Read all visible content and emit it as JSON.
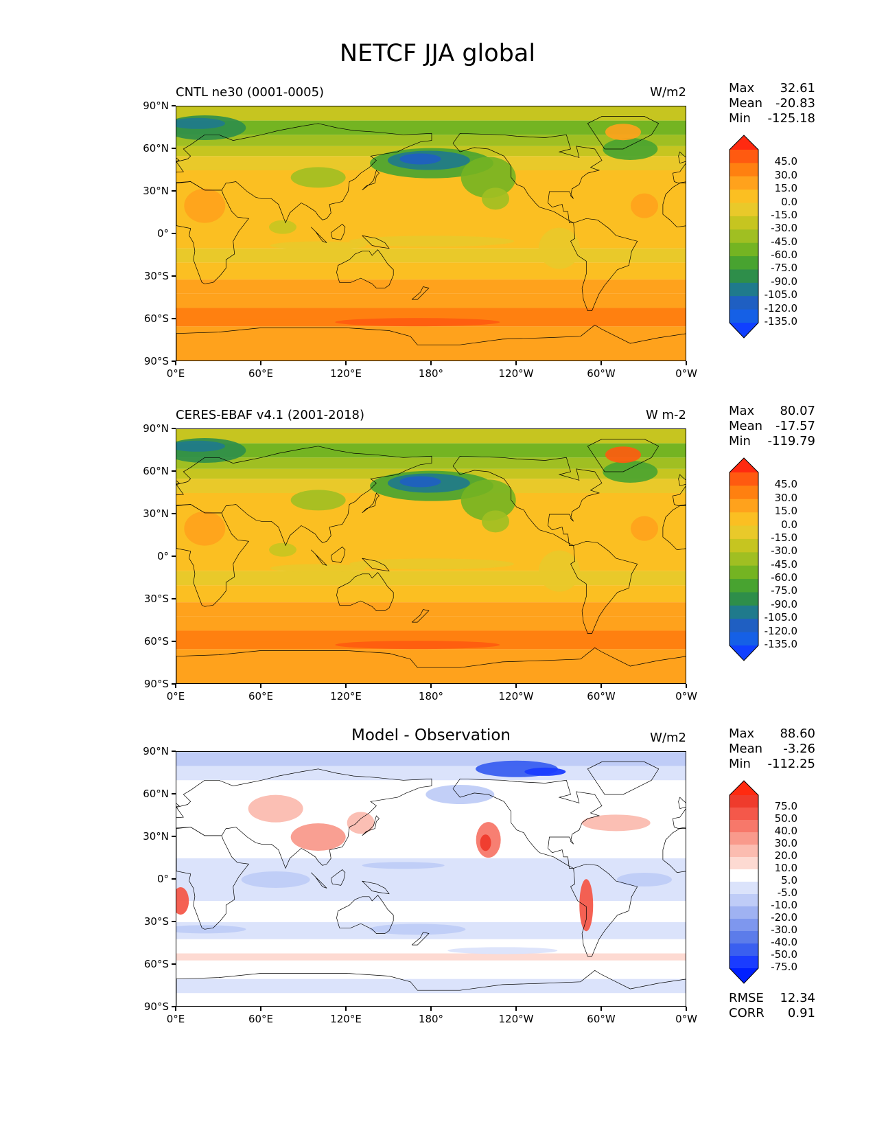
{
  "title": "NETCF JJA global",
  "chart_data": [
    {
      "type": "heatmap",
      "title": "CNTL ne30 (0001-0005)",
      "units": "W/m2",
      "xlabel": "",
      "ylabel": "",
      "xticks": [
        "0°E",
        "60°E",
        "120°E",
        "180°",
        "120°W",
        "60°W",
        "0°W"
      ],
      "yticks": [
        "90°N",
        "60°N",
        "30°N",
        "0°",
        "30°S",
        "60°S",
        "90°S"
      ],
      "stats": {
        "max_label": "Max",
        "max": "32.61",
        "mean_label": "Mean",
        "mean": "-20.83",
        "min_label": "Min",
        "min": "-125.18"
      },
      "colorbar": {
        "labels": [
          "45.0",
          "30.0",
          "15.0",
          "0.0",
          "-15.0",
          "-30.0",
          "-45.0",
          "-60.0",
          "-75.0",
          "-90.0",
          "-105.0",
          "-120.0",
          "-135.0"
        ],
        "colors": [
          "#ff2a10",
          "#ff5a10",
          "#ff8010",
          "#ffa21c",
          "#fbbf22",
          "#e9c92a",
          "#c6c520",
          "#a0bf22",
          "#74b422",
          "#48a330",
          "#2e8e4a",
          "#1f7a8c",
          "#1f5fc2",
          "#1560e6",
          "#1040ff"
        ]
      }
    },
    {
      "type": "heatmap",
      "title": "CERES-EBAF v4.1 (2001-2018)",
      "units": "W m-2",
      "xticks": [
        "0°E",
        "60°E",
        "120°E",
        "180°",
        "120°W",
        "60°W",
        "0°W"
      ],
      "yticks": [
        "90°N",
        "60°N",
        "30°N",
        "0°",
        "30°S",
        "60°S",
        "90°S"
      ],
      "stats": {
        "max_label": "Max",
        "max": "80.07",
        "mean_label": "Mean",
        "mean": "-17.57",
        "min_label": "Min",
        "min": "-119.79"
      },
      "colorbar": {
        "labels": [
          "45.0",
          "30.0",
          "15.0",
          "0.0",
          "-15.0",
          "-30.0",
          "-45.0",
          "-60.0",
          "-75.0",
          "-90.0",
          "-105.0",
          "-120.0",
          "-135.0"
        ],
        "colors": [
          "#ff2a10",
          "#ff5a10",
          "#ff8010",
          "#ffa21c",
          "#fbbf22",
          "#e9c92a",
          "#c6c520",
          "#a0bf22",
          "#74b422",
          "#48a330",
          "#2e8e4a",
          "#1f7a8c",
          "#1f5fc2",
          "#1560e6",
          "#1040ff"
        ]
      }
    },
    {
      "type": "heatmap",
      "title": "Model - Observation",
      "units": "W/m2",
      "xticks": [
        "0°E",
        "60°E",
        "120°E",
        "180°",
        "120°W",
        "60°W",
        "0°W"
      ],
      "yticks": [
        "90°N",
        "60°N",
        "30°N",
        "0°",
        "30°S",
        "60°S",
        "90°S"
      ],
      "stats": {
        "max_label": "Max",
        "max": "88.60",
        "mean_label": "Mean",
        "mean": "-3.26",
        "min_label": "Min",
        "min": "-112.25"
      },
      "metrics": {
        "rmse_label": "RMSE",
        "rmse": "12.34",
        "corr_label": "CORR",
        "corr": "0.91"
      },
      "colorbar": {
        "labels": [
          "75.0",
          "50.0",
          "40.0",
          "30.0",
          "20.0",
          "10.0",
          "5.0",
          "-5.0",
          "-10.0",
          "-20.0",
          "-30.0",
          "-40.0",
          "-50.0",
          "-75.0"
        ],
        "colors": [
          "#ff2a10",
          "#ef3b2c",
          "#f4584a",
          "#f7786a",
          "#f99a8c",
          "#fbbcb0",
          "#fddad2",
          "#ffffff",
          "#dbe3fb",
          "#bfccf7",
          "#9fb2f2",
          "#7e97ee",
          "#5c7cea",
          "#3a5ff0",
          "#1a3cff",
          "#0020ff"
        ]
      }
    }
  ]
}
